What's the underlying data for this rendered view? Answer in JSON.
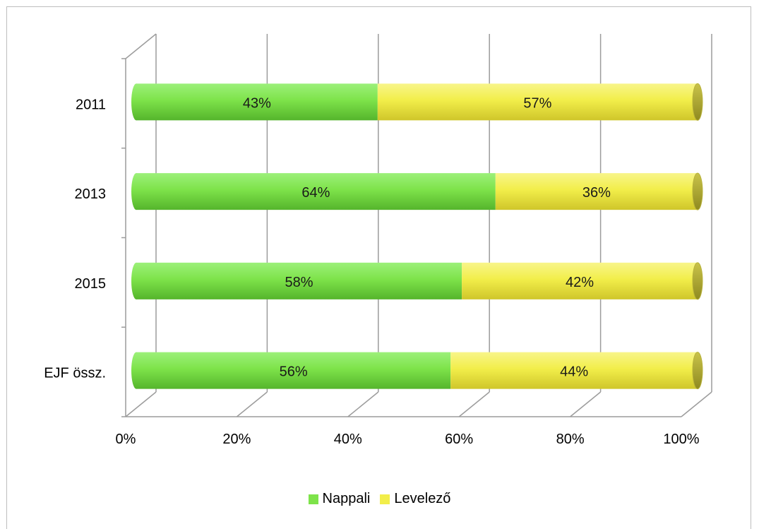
{
  "chart_data": {
    "type": "bar",
    "orientation": "horizontal",
    "stacked": "percent",
    "categories": [
      "2011",
      "2013",
      "2015",
      "EJF össz."
    ],
    "series": [
      {
        "name": "Nappali",
        "color": "#7ee34a",
        "values": [
          43,
          64,
          58,
          56
        ],
        "labels": [
          "43%",
          "64%",
          "58%",
          "56%"
        ]
      },
      {
        "name": "Levelező",
        "color": "#f2ee4a",
        "values": [
          57,
          36,
          42,
          44
        ],
        "labels": [
          "57%",
          "36%",
          "42%",
          "44%"
        ]
      }
    ],
    "xticks": [
      "0%",
      "20%",
      "40%",
      "60%",
      "80%",
      "100%"
    ],
    "xlim": [
      0,
      100
    ],
    "grid": true,
    "legend": "bottom"
  }
}
